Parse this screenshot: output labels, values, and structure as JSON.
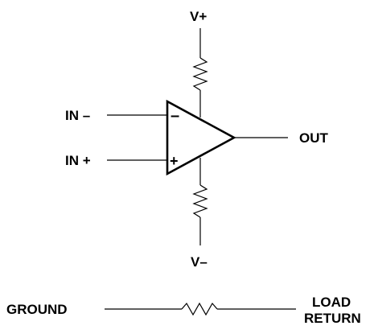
{
  "labels": {
    "v_plus": "V+",
    "v_minus": "V–",
    "in_minus": "IN –",
    "in_plus": "IN +",
    "out": "OUT",
    "ground": "GROUND",
    "load_return_line1": "LOAD",
    "load_return_line2": "RETURN"
  },
  "opamp_symbols": {
    "inverting": "–",
    "non_inverting": "+"
  },
  "colors": {
    "line": "#000000",
    "background": "#ffffff"
  }
}
